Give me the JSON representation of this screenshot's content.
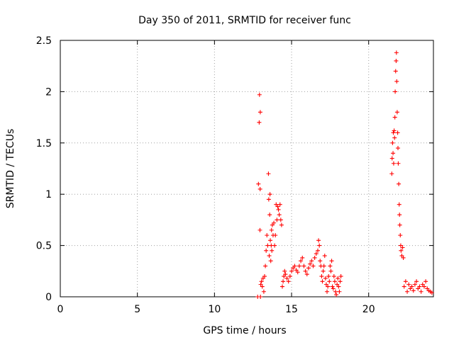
{
  "chart_data": {
    "type": "scatter",
    "title": "Day 350 of 2011, SRMTID for receiver func",
    "xlabel": "GPS time / hours",
    "ylabel": "SRMTID / TECUs",
    "xlim": [
      0,
      24.2
    ],
    "ylim": [
      0,
      2.5
    ],
    "x_ticks": [
      0,
      5,
      10,
      15,
      20
    ],
    "x_tick_labels": [
      "0",
      "5",
      "10",
      "15",
      "20"
    ],
    "y_ticks": [
      0,
      0.5,
      1,
      1.5,
      2,
      2.5
    ],
    "y_tick_labels": [
      "0",
      "0.5",
      "1",
      "1.5",
      "2",
      "2.5"
    ],
    "grid": true,
    "legend": "none",
    "marker": "+",
    "color": "#ff0000",
    "series": [
      {
        "x": [
          12.8,
          12.85,
          12.9,
          12.92,
          12.95,
          12.96,
          12.97,
          12.98,
          13.0,
          13.05,
          13.1,
          13.15,
          13.2,
          13.25,
          13.3,
          13.35,
          13.4,
          13.45,
          13.5,
          13.52,
          13.55,
          13.58,
          13.6,
          13.62,
          13.65,
          13.68,
          13.7,
          13.72,
          13.75,
          13.8,
          13.85,
          13.9,
          13.95,
          14.0,
          14.05,
          14.1,
          14.15,
          14.2,
          14.25,
          14.3,
          14.35,
          14.4,
          14.45,
          14.5,
          14.55,
          14.6,
          14.7,
          14.8,
          14.9,
          15.0,
          15.1,
          15.2,
          15.3,
          15.4,
          15.5,
          15.6,
          15.7,
          15.8,
          15.9,
          16.0,
          16.1,
          16.2,
          16.3,
          16.4,
          16.5,
          16.6,
          16.7,
          16.75,
          16.8,
          16.85,
          16.9,
          16.95,
          17.0,
          17.05,
          17.1,
          17.15,
          17.2,
          17.25,
          17.3,
          17.35,
          17.4,
          17.45,
          17.5,
          17.55,
          17.6,
          17.65,
          17.7,
          17.75,
          17.8,
          17.85,
          17.9,
          17.95,
          18.0,
          18.05,
          18.1,
          18.15,
          18.2,
          21.5,
          21.52,
          21.55,
          21.58,
          21.6,
          21.62,
          21.65,
          21.68,
          21.7,
          21.72,
          21.75,
          21.78,
          21.8,
          21.82,
          21.85,
          21.88,
          21.9,
          21.92,
          21.95,
          21.98,
          22.0,
          22.02,
          22.05,
          22.08,
          22.1,
          22.15,
          22.2,
          22.25,
          22.3,
          22.4,
          22.5,
          22.6,
          22.7,
          22.8,
          22.9,
          23.0,
          23.1,
          23.2,
          23.3,
          23.4,
          23.5,
          23.6,
          23.7,
          23.8,
          23.9,
          24.0,
          24.1
        ],
        "y": [
          0.0,
          1.1,
          1.7,
          1.97,
          0.65,
          1.05,
          1.8,
          0.0,
          0.12,
          0.15,
          0.1,
          0.18,
          0.05,
          0.2,
          0.3,
          0.45,
          0.6,
          0.5,
          1.2,
          0.95,
          0.4,
          0.8,
          1.0,
          0.55,
          0.35,
          0.5,
          0.65,
          0.45,
          0.7,
          0.6,
          0.72,
          0.5,
          0.6,
          0.9,
          0.75,
          0.88,
          0.85,
          0.8,
          0.9,
          0.75,
          0.7,
          0.1,
          0.15,
          0.2,
          0.25,
          0.22,
          0.18,
          0.15,
          0.2,
          0.25,
          0.28,
          0.3,
          0.26,
          0.24,
          0.3,
          0.35,
          0.38,
          0.3,
          0.25,
          0.22,
          0.28,
          0.32,
          0.35,
          0.3,
          0.38,
          0.42,
          0.45,
          0.55,
          0.5,
          0.35,
          0.3,
          0.2,
          0.15,
          0.25,
          0.3,
          0.4,
          0.18,
          0.12,
          0.05,
          0.1,
          0.2,
          0.15,
          0.3,
          0.25,
          0.35,
          0.1,
          0.08,
          0.2,
          0.15,
          0.05,
          0.02,
          0.12,
          0.18,
          0.1,
          0.05,
          0.15,
          0.2,
          1.2,
          1.35,
          1.5,
          1.4,
          1.6,
          1.3,
          1.62,
          1.55,
          1.75,
          2.0,
          2.2,
          2.3,
          2.38,
          2.1,
          1.8,
          1.6,
          1.45,
          1.3,
          1.1,
          0.9,
          0.8,
          0.7,
          0.6,
          0.5,
          0.45,
          0.4,
          0.48,
          0.38,
          0.1,
          0.15,
          0.05,
          0.12,
          0.08,
          0.1,
          0.06,
          0.12,
          0.15,
          0.08,
          0.1,
          0.05,
          0.12,
          0.1,
          0.15,
          0.08,
          0.06,
          0.05,
          0.04
        ]
      }
    ]
  }
}
